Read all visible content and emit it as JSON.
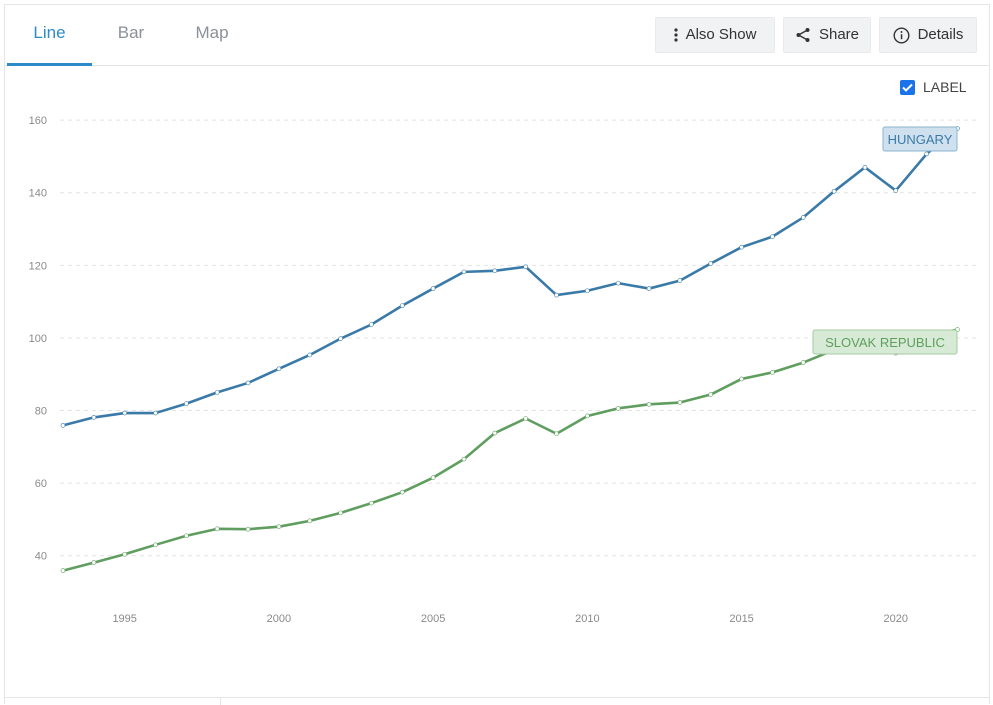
{
  "tabs": [
    {
      "label": "Line",
      "active": true
    },
    {
      "label": "Bar",
      "active": false
    },
    {
      "label": "Map",
      "active": false
    }
  ],
  "toolbar": {
    "also_show": "Also Show",
    "share": "Share",
    "details": "Details"
  },
  "label_toggle": {
    "text": "LABEL",
    "checked": true
  },
  "chart_data": {
    "type": "line",
    "x": [
      1993,
      1994,
      1995,
      1996,
      1997,
      1998,
      1999,
      2000,
      2001,
      2002,
      2003,
      2004,
      2005,
      2006,
      2007,
      2008,
      2009,
      2010,
      2011,
      2012,
      2013,
      2014,
      2015,
      2016,
      2017,
      2018,
      2019,
      2020,
      2021,
      2022
    ],
    "series": [
      {
        "name": "HUNGARY",
        "color": "#3a7aa8",
        "values": [
          75.9,
          78.1,
          79.3,
          79.3,
          81.9,
          85.0,
          87.6,
          91.5,
          95.3,
          99.8,
          103.7,
          108.9,
          113.6,
          118.2,
          118.5,
          119.6,
          111.8,
          113.0,
          115.1,
          113.6,
          115.8,
          120.5,
          125.0,
          127.9,
          133.2,
          140.4,
          147.0,
          140.6,
          150.7,
          157.7
        ]
      },
      {
        "name": "SLOVAK REPUBLIC",
        "color": "#5f9e5e",
        "values": [
          35.9,
          38.1,
          40.4,
          43.0,
          45.5,
          47.4,
          47.3,
          48.0,
          49.6,
          51.8,
          54.5,
          57.5,
          61.5,
          66.6,
          73.8,
          77.8,
          73.6,
          78.5,
          80.6,
          81.7,
          82.2,
          84.4,
          88.7,
          90.5,
          93.2,
          96.7,
          98.7,
          95.8,
          100.4,
          102.3
        ]
      }
    ],
    "y_ticks": [
      40,
      60,
      80,
      100,
      120,
      140,
      160
    ],
    "x_ticks": [
      1995,
      2000,
      2005,
      2010,
      2015,
      2020
    ],
    "ylim": [
      30,
      165
    ],
    "xlim": [
      1993,
      2022.6
    ],
    "grid": true,
    "title": "",
    "xlabel": "",
    "ylabel": ""
  }
}
